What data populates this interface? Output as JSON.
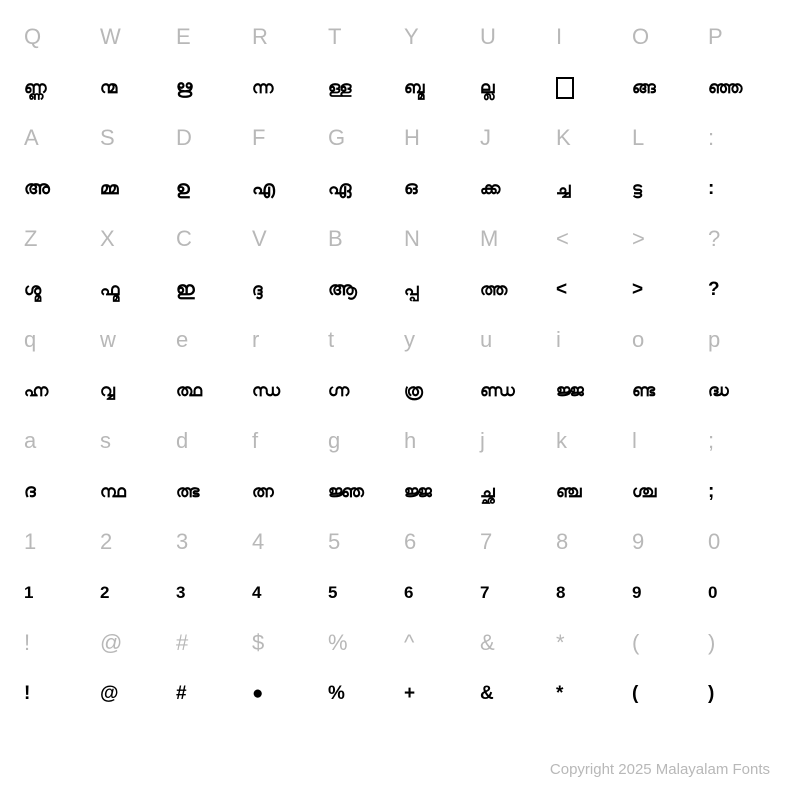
{
  "rows": [
    {
      "type": "key",
      "cells": [
        "Q",
        "W",
        "E",
        "R",
        "T",
        "Y",
        "U",
        "I",
        "O",
        "P"
      ]
    },
    {
      "type": "glyph",
      "cells": [
        "ണ്ണ",
        "ന്മ",
        "ഋ",
        "ന്ന",
        "ള്ള",
        "ബ്മ",
        "ല്ല",
        "□",
        "ങ്ങ",
        "ഞ്ഞ"
      ]
    },
    {
      "type": "key",
      "cells": [
        "A",
        "S",
        "D",
        "F",
        "G",
        "H",
        "J",
        "K",
        "L",
        ":"
      ]
    },
    {
      "type": "glyph",
      "cells": [
        "അ",
        "മ്മ",
        "ഉ",
        "എ",
        "ഏ",
        "ഒ",
        "ക്ക",
        "ച്ച",
        "ട്ട",
        ":"
      ]
    },
    {
      "type": "key",
      "cells": [
        "Z",
        "X",
        "C",
        "V",
        "B",
        "N",
        "M",
        "<",
        ">",
        "?"
      ]
    },
    {
      "type": "glyph",
      "cells": [
        "ശ്മ",
        "ഫ്മ",
        "ഇ",
        "ദ്ദ",
        "ആ",
        "പ്പ",
        "ത്ത",
        "<",
        ">",
        "?"
      ]
    },
    {
      "type": "key",
      "cells": [
        "q",
        "w",
        "e",
        "r",
        "t",
        "y",
        "u",
        "i",
        "o",
        "p"
      ]
    },
    {
      "type": "glyph",
      "cells": [
        "ഹ്ന",
        "വ്വ",
        "ത്ഥ",
        "ന്ധ",
        "ഗ്ന",
        "ത്ര",
        "ണ്ഡ",
        "ജ്ജ",
        "ണ്ട",
        "ദ്ധ"
      ]
    },
    {
      "type": "key",
      "cells": [
        "a",
        "s",
        "d",
        "f",
        "g",
        "h",
        "j",
        "k",
        "l",
        ";"
      ]
    },
    {
      "type": "glyph",
      "cells": [
        "ദ",
        "ന്ഥ",
        "ത്ഭ",
        "ത്ന",
        "ജ്ഞ",
        "ജ്ജ",
        "ച്ഛ",
        "ഞ്ച",
        "ശ്ച",
        ";"
      ]
    },
    {
      "type": "key",
      "cells": [
        "1",
        "2",
        "3",
        "4",
        "5",
        "6",
        "7",
        "8",
        "9",
        "0"
      ]
    },
    {
      "type": "glyph",
      "cells": [
        "1",
        "2",
        "3",
        "4",
        "5",
        "6",
        "7",
        "8",
        "9",
        "0"
      ]
    },
    {
      "type": "key",
      "cells": [
        "!",
        "@",
        "#",
        "$",
        "%",
        "^",
        "&",
        "*",
        "(",
        ")"
      ]
    },
    {
      "type": "glyph",
      "cells": [
        "!",
        "@",
        "#",
        "●",
        "%",
        "+",
        "&",
        "*",
        "(",
        ")"
      ]
    }
  ],
  "footer": "Copyright 2025 Malayalam Fonts",
  "colors": {
    "key_label": "#b8b8b8",
    "glyph": "#000000",
    "background": "#ffffff",
    "footer": "#b8b8b8"
  },
  "typography": {
    "key_label_size": 22,
    "glyph_size": 17,
    "footer_size": 15
  }
}
